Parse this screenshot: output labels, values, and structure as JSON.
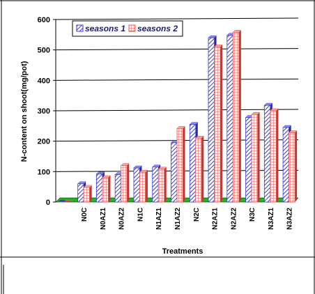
{
  "chart_data": {
    "type": "bar",
    "xlabel": "Treatments",
    "ylabel": "N-content on shoot(mg/pot)",
    "ylim": [
      0,
      600
    ],
    "yticks": [
      0,
      100,
      200,
      300,
      400,
      500,
      600
    ],
    "grid": true,
    "legend_position": "top-left",
    "categories": [
      "",
      "N0C",
      "N0AZ1",
      "N0AZ2",
      "N1C",
      "N1AZ1",
      "N1AZ2",
      "N2C",
      "N2AZ1",
      "N2AZ2",
      "N3C",
      "N3AZ1",
      "N3AZ2"
    ],
    "series": [
      {
        "name": "seasons 1",
        "values": [
          0,
          60,
          92,
          90,
          112,
          115,
          195,
          255,
          540,
          548,
          278,
          318,
          245
        ],
        "color": "#3a3ad8",
        "pattern": "diagonal-hatch"
      },
      {
        "name": "seasons 2",
        "values": [
          0,
          48,
          80,
          120,
          98,
          108,
          242,
          210,
          510,
          558,
          288,
          300,
          228
        ],
        "color": "#e8504a",
        "pattern": "grid"
      }
    ],
    "floor_color": "#22b422"
  }
}
